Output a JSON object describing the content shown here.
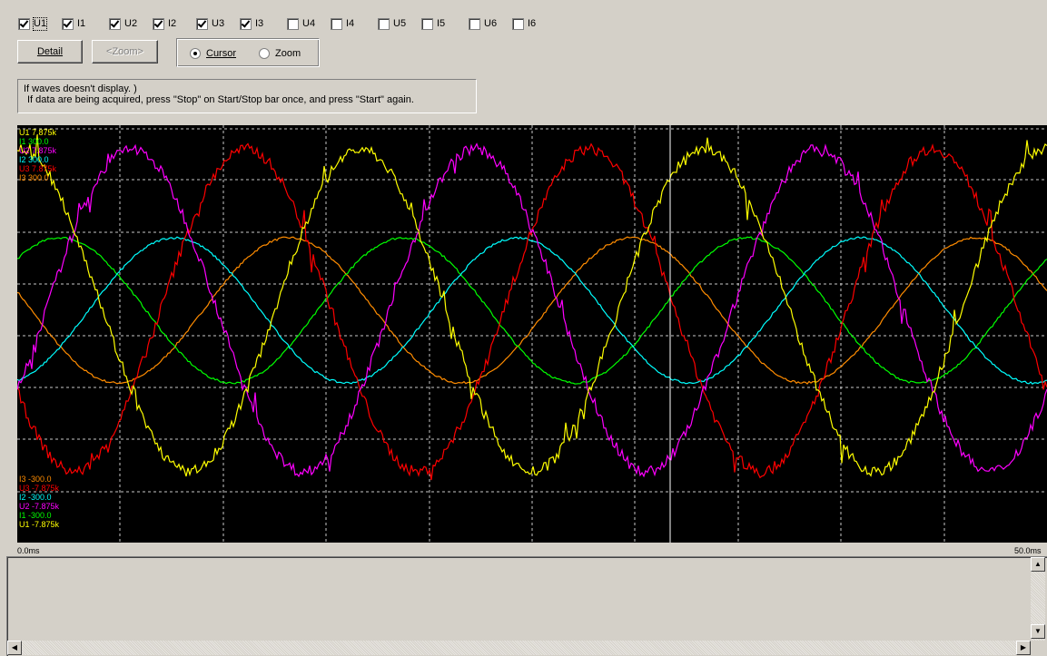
{
  "channels": [
    {
      "label": "U1",
      "checked": true
    },
    {
      "label": "I1",
      "checked": true
    },
    {
      "label": "U2",
      "checked": true
    },
    {
      "label": "I2",
      "checked": true
    },
    {
      "label": "U3",
      "checked": true
    },
    {
      "label": "I3",
      "checked": true
    },
    {
      "label": "U4",
      "checked": false
    },
    {
      "label": "I4",
      "checked": false
    },
    {
      "label": "U5",
      "checked": false
    },
    {
      "label": "I5",
      "checked": false
    },
    {
      "label": "U6",
      "checked": false
    },
    {
      "label": "I6",
      "checked": false
    }
  ],
  "toolbar": {
    "detail_label": "Detail",
    "zoom_label": "<Zoom>",
    "cursor_label": "Cursor",
    "zoom_radio_label": "Zoom",
    "mode_selected": "Cursor"
  },
  "info": {
    "line1": "If waves doesn't display. )",
    "line2": "If data are being acquired,  press \"Stop\" on Start/Stop bar once, and press \"Start\" again."
  },
  "colors": {
    "U1": "#ffff00",
    "I1": "#00ff00",
    "U2": "#ff00ff",
    "I2": "#00ffff",
    "U3": "#ff0000",
    "I3": "#ff8c00"
  },
  "scale_top": [
    {
      "text": "U1 7.875k",
      "series": "U1"
    },
    {
      "text": "I1 300.0",
      "series": "I1"
    },
    {
      "text": "U2 7.875k",
      "series": "U2"
    },
    {
      "text": "I2 300.0",
      "series": "I2"
    },
    {
      "text": "U3 7.875k",
      "series": "U3"
    },
    {
      "text": "I3 300.0",
      "series": "I3"
    }
  ],
  "scale_bottom": [
    {
      "text": "I3 -300.0",
      "series": "I3"
    },
    {
      "text": "U3 -7.875k",
      "series": "U3"
    },
    {
      "text": "I2 -300.0",
      "series": "I2"
    },
    {
      "text": "U2 -7.875k",
      "series": "U2"
    },
    {
      "text": "I1 -300.0",
      "series": "I1"
    },
    {
      "text": "U1 -7.875k",
      "series": "U1"
    }
  ],
  "time_axis": {
    "start": "0.0ms",
    "end": "50.0ms"
  },
  "chart_data": {
    "type": "line",
    "x_unit": "ms",
    "xlim": [
      0,
      50
    ],
    "cursor_x": 31.7,
    "series": [
      {
        "name": "U1",
        "amplitude": 7.0,
        "phase_deg": 90,
        "unit": "kV",
        "range": [
          -7.875,
          7.875
        ]
      },
      {
        "name": "U2",
        "amplitude": 7.0,
        "phase_deg": -30,
        "unit": "kV",
        "range": [
          -7.875,
          7.875
        ]
      },
      {
        "name": "U3",
        "amplitude": 7.0,
        "phase_deg": -150,
        "unit": "kV",
        "range": [
          -7.875,
          7.875
        ]
      },
      {
        "name": "I1",
        "amplitude": 120,
        "phase_deg": 45,
        "unit": "A",
        "range": [
          -300,
          300
        ]
      },
      {
        "name": "I2",
        "amplitude": 120,
        "phase_deg": -75,
        "unit": "A",
        "range": [
          -300,
          300
        ]
      },
      {
        "name": "I3",
        "amplitude": 120,
        "phase_deg": 165,
        "unit": "A",
        "range": [
          -300,
          300
        ]
      }
    ],
    "period_ms": 16.67
  }
}
